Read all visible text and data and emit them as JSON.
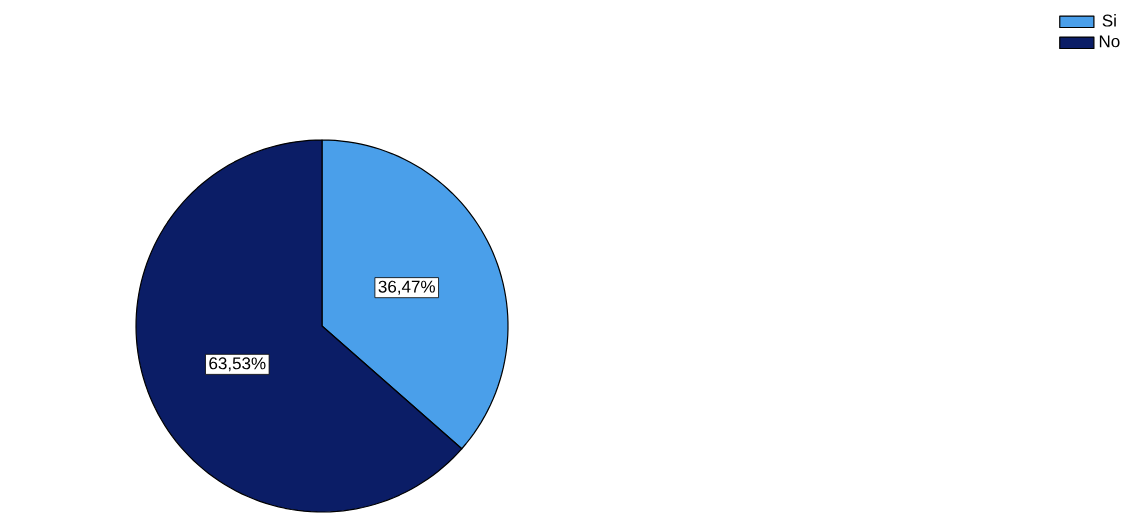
{
  "chart_data": {
    "type": "pie",
    "categories": [
      "Si",
      "No"
    ],
    "values": [
      36.47,
      63.53
    ],
    "colors": [
      "#4a9fea",
      "#0b1d66"
    ],
    "value_labels": [
      "36,47%",
      "63,53%"
    ],
    "legend": "top right"
  }
}
